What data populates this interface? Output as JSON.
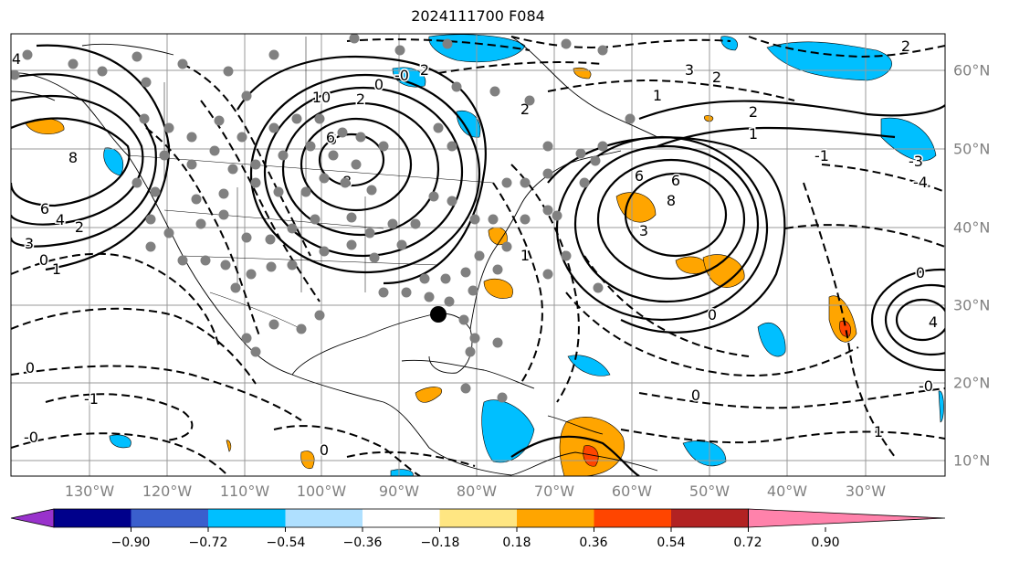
{
  "title": "2024111700 F084",
  "longitude_labels": [
    "130°W",
    "120°W",
    "110°W",
    "100°W",
    "90°W",
    "80°W",
    "70°W",
    "60°W",
    "50°W",
    "40°W",
    "30°W"
  ],
  "latitude_labels": [
    "60°N",
    "50°N",
    "40°N",
    "30°N",
    "20°N",
    "10°N"
  ],
  "colorbar": {
    "ticks": [
      "−0.90",
      "−0.72",
      "−0.54",
      "−0.36",
      "−0.18",
      "0.18",
      "0.36",
      "0.54",
      "0.72",
      "0.90"
    ],
    "colors": [
      "#9932cc",
      "#00008b",
      "#3a5fcd",
      "#00bfff",
      "#afe0ff",
      "#ffffff",
      "#ffe682",
      "#ffa500",
      "#ff4500",
      "#b22222",
      "#ff82ab"
    ]
  },
  "map_colors": {
    "negative_fill": "#00bfff",
    "positive_fill": "#ffa500",
    "strong_positive_fill": "#ff4500",
    "station_dot": "#808080",
    "marker": "#000000"
  },
  "contour_labels": [
    {
      "text": "4"
    },
    {
      "text": "8"
    },
    {
      "text": "6"
    },
    {
      "text": "4"
    },
    {
      "text": "2"
    },
    {
      "text": "3"
    },
    {
      "text": "1"
    },
    {
      "text": "0"
    },
    {
      "text": "10"
    },
    {
      "text": "2"
    },
    {
      "text": "6"
    },
    {
      "text": "8"
    },
    {
      "text": "0"
    },
    {
      "text": "2"
    },
    {
      "text": "6"
    },
    {
      "text": "2"
    },
    {
      "text": "3"
    },
    {
      "text": "1"
    },
    {
      "text": "2"
    },
    {
      "text": "1"
    },
    {
      "text": "6"
    },
    {
      "text": "8"
    },
    {
      "text": "3"
    },
    {
      "text": "0"
    },
    {
      "text": "-1"
    },
    {
      "text": "-3"
    },
    {
      "text": "-4"
    },
    {
      "text": "2"
    },
    {
      "text": "0"
    },
    {
      "text": "4"
    },
    {
      "text": "-0"
    },
    {
      "text": "-1"
    },
    {
      "text": "0"
    },
    {
      "text": "-0"
    },
    {
      "text": "1"
    },
    {
      "text": "0"
    },
    {
      "text": "0"
    },
    {
      "text": "1"
    },
    {
      "text": "-0"
    },
    {
      "text": "6"
    },
    {
      "text": "2"
    }
  ]
}
